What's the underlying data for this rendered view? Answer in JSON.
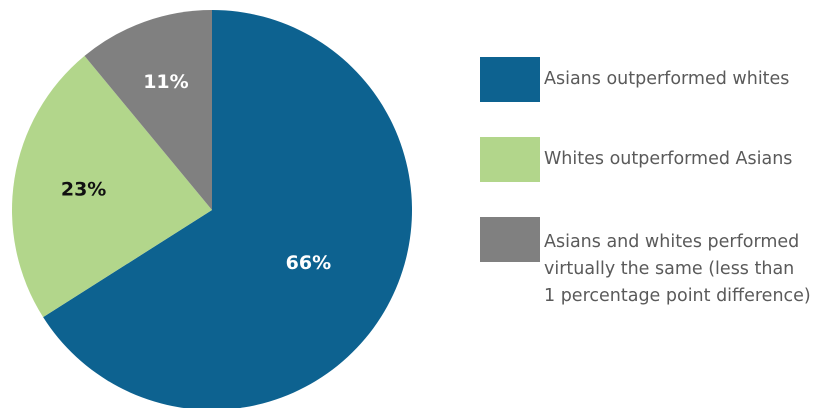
{
  "chart_data": {
    "type": "pie",
    "title": "",
    "categories": [
      "Asians outperformed whites",
      "Whites outperformed Asians",
      "Asians and whites performed\nvirtually the same (less than\n1 percentage point difference)"
    ],
    "values": [
      66,
      23,
      11
    ],
    "labels": [
      "66%",
      "23%",
      "11%"
    ],
    "colors": [
      "#0d6290",
      "#b2d68b",
      "#808080"
    ],
    "label_colors": [
      "#ffffff",
      "#111111",
      "#ffffff"
    ],
    "start": "12 o'clock",
    "direction": "clockwise",
    "legend": "right"
  }
}
